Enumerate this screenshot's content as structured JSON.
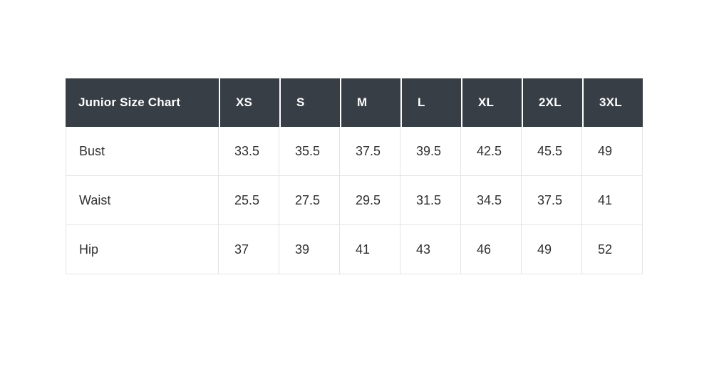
{
  "chart_data": {
    "type": "table",
    "title": "Junior Size Chart",
    "columns": [
      "Junior Size Chart",
      "XS",
      "S",
      "M",
      "L",
      "XL",
      "2XL",
      "3XL"
    ],
    "rows": [
      [
        "Bust",
        "33.5",
        "35.5",
        "37.5",
        "39.5",
        "42.5",
        "45.5",
        "49"
      ],
      [
        "Waist",
        "25.5",
        "27.5",
        "29.5",
        "31.5",
        "34.5",
        "37.5",
        "41"
      ],
      [
        "Hip",
        "37",
        "39",
        "41",
        "43",
        "46",
        "49",
        "52"
      ]
    ]
  },
  "colors": {
    "header_bg": "#373e46",
    "header_text": "#ffffff",
    "body_text": "#303030",
    "border": "#e4e4e4",
    "page_bg": "#ffffff"
  }
}
